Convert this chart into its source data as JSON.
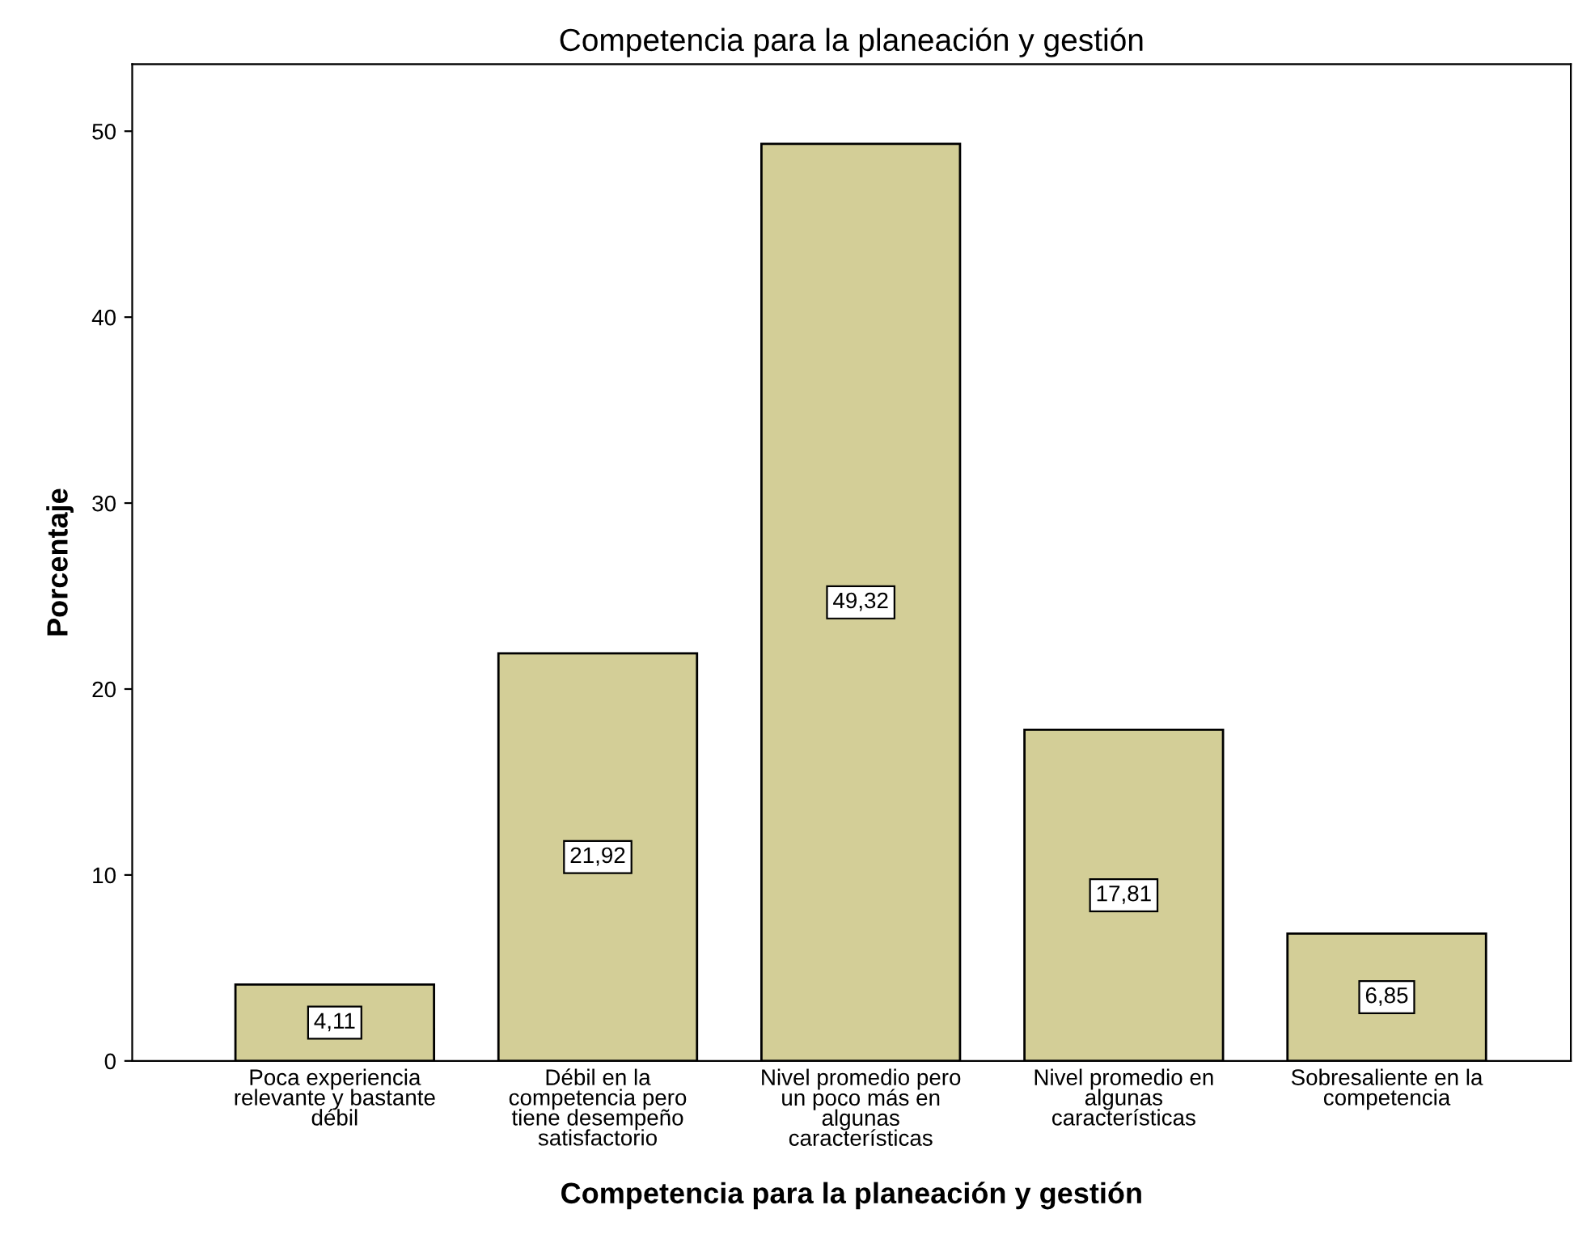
{
  "chart_data": {
    "type": "bar",
    "title": "Competencia para la planeación y gestión",
    "xlabel": "Competencia para la planeación y gestión",
    "ylabel": "Porcentaje",
    "categories": [
      "Poca experiencia\nrelevante y bastante\ndébil",
      "Débil en la\ncompetencia pero\ntiene desempeño\nsatisfactorio",
      "Nivel promedio pero\nun poco más en\nalgunas\ncaracterísticas",
      "Nivel promedio en\nalgunas\ncaracterísticas",
      "Sobresaliente en la\ncompetencia"
    ],
    "values": [
      4.11,
      21.92,
      49.32,
      17.81,
      6.85
    ],
    "value_labels": [
      "4,11",
      "21,92",
      "49,32",
      "17,81",
      "6,85"
    ],
    "color": "#d3ce97",
    "ylim": [
      0,
      53.6
    ],
    "yticks": [
      0,
      10,
      20,
      30,
      40,
      50
    ],
    "grid": false,
    "legend": false
  }
}
